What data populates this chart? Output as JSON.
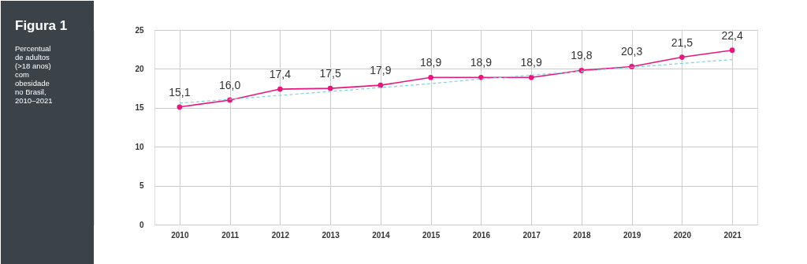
{
  "chart_data": {
    "type": "line",
    "title": "Figura 1",
    "subtitle": "Percentual\nde adultos\n(>18 anos)\ncom\nobesidade\nno Brasil,\n2010–2021",
    "categories": [
      "2010",
      "2011",
      "2012",
      "2013",
      "2014",
      "2015",
      "2016",
      "2017",
      "2018",
      "2019",
      "2020",
      "2021"
    ],
    "series": [
      {
        "color": "#e8177d",
        "values": [
          15.1,
          16.0,
          17.4,
          17.5,
          17.9,
          18.9,
          18.9,
          18.9,
          19.8,
          20.3,
          21.5,
          22.4
        ],
        "marker": "circle",
        "line_style": "solid",
        "value_labels": [
          "15,1",
          "16,0",
          "17,4",
          "17,5",
          "17,9",
          "18,9",
          "18,9",
          "18,9",
          "19,8",
          "20,3",
          "21,5",
          "22,4"
        ]
      },
      {
        "color": "#7fd0e0",
        "values": [
          15.6,
          16.1,
          16.6,
          17.1,
          17.6,
          18.1,
          18.7,
          19.2,
          19.7,
          20.2,
          20.7,
          21.2
        ],
        "marker": "none",
        "line_style": "dashed"
      }
    ],
    "ylim": [
      0,
      25
    ],
    "yticks": [
      0,
      5,
      10,
      15,
      20,
      25
    ],
    "grid": true
  }
}
